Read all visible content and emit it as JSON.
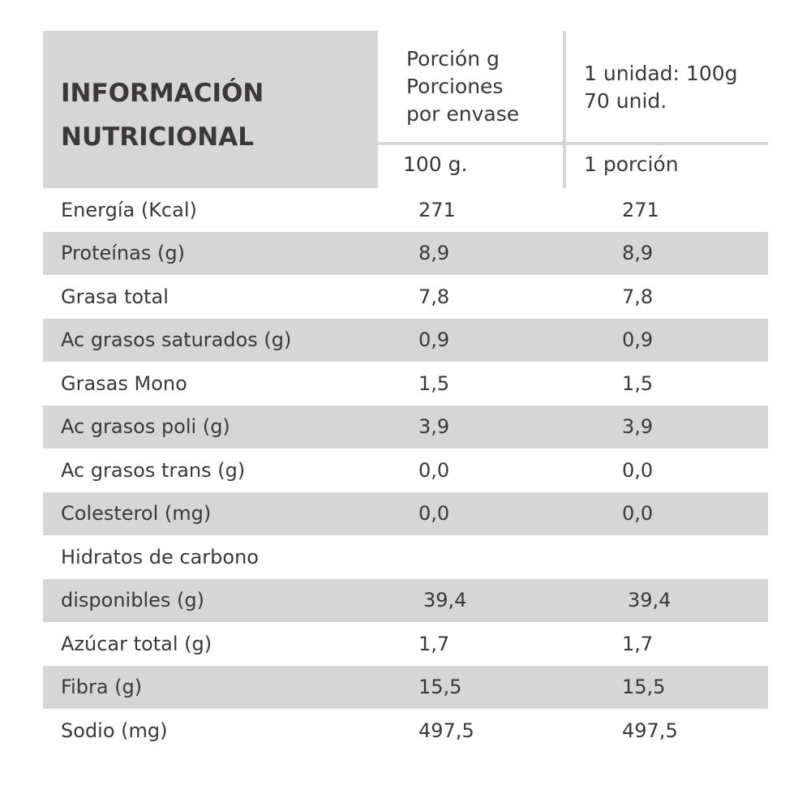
{
  "header": {
    "title_line1": "INFORMACIÓN",
    "title_line2": "NUTRICIONAL",
    "col1_line1": "Porción g",
    "col1_line2": "Porciones",
    "col1_line3": "por envase",
    "col2_line1": "1 unidad: 100g",
    "col2_line2": "70 unid.",
    "col1_sub": "100 g.",
    "col2_sub": "1 porción"
  },
  "rows": [
    {
      "name": "Energía (Kcal)",
      "v1": "271",
      "v2": "271"
    },
    {
      "name": "Proteínas (g)",
      "v1": "8,9",
      "v2": "8,9"
    },
    {
      "name": "Grasa total",
      "v1": "7,8",
      "v2": "7,8"
    },
    {
      "name": "Ac grasos saturados (g)",
      "v1": "0,9",
      "v2": "0,9"
    },
    {
      "name": "Grasas Mono",
      "v1": "1,5",
      "v2": "1,5"
    },
    {
      "name": "Ac grasos poli (g)",
      "v1": "3,9",
      "v2": "3,9"
    },
    {
      "name": "Ac grasos trans (g)",
      "v1": "0,0",
      "v2": "0,0"
    },
    {
      "name": "Colesterol (mg)",
      "v1": "0,0",
      "v2": "0,0"
    },
    {
      "name": "Hidratos de carbono",
      "v1": "",
      "v2": ""
    },
    {
      "name": "disponibles (g)",
      "v1": "39,4",
      "v2": "39,4"
    },
    {
      "name": "Azúcar total (g)",
      "v1": "1,7",
      "v2": "1,7"
    },
    {
      "name": "Fibra (g)",
      "v1": "15,5",
      "v2": "15,5"
    },
    {
      "name": "Sodio (mg)",
      "v1": "497,5",
      "v2": "497,5"
    }
  ]
}
